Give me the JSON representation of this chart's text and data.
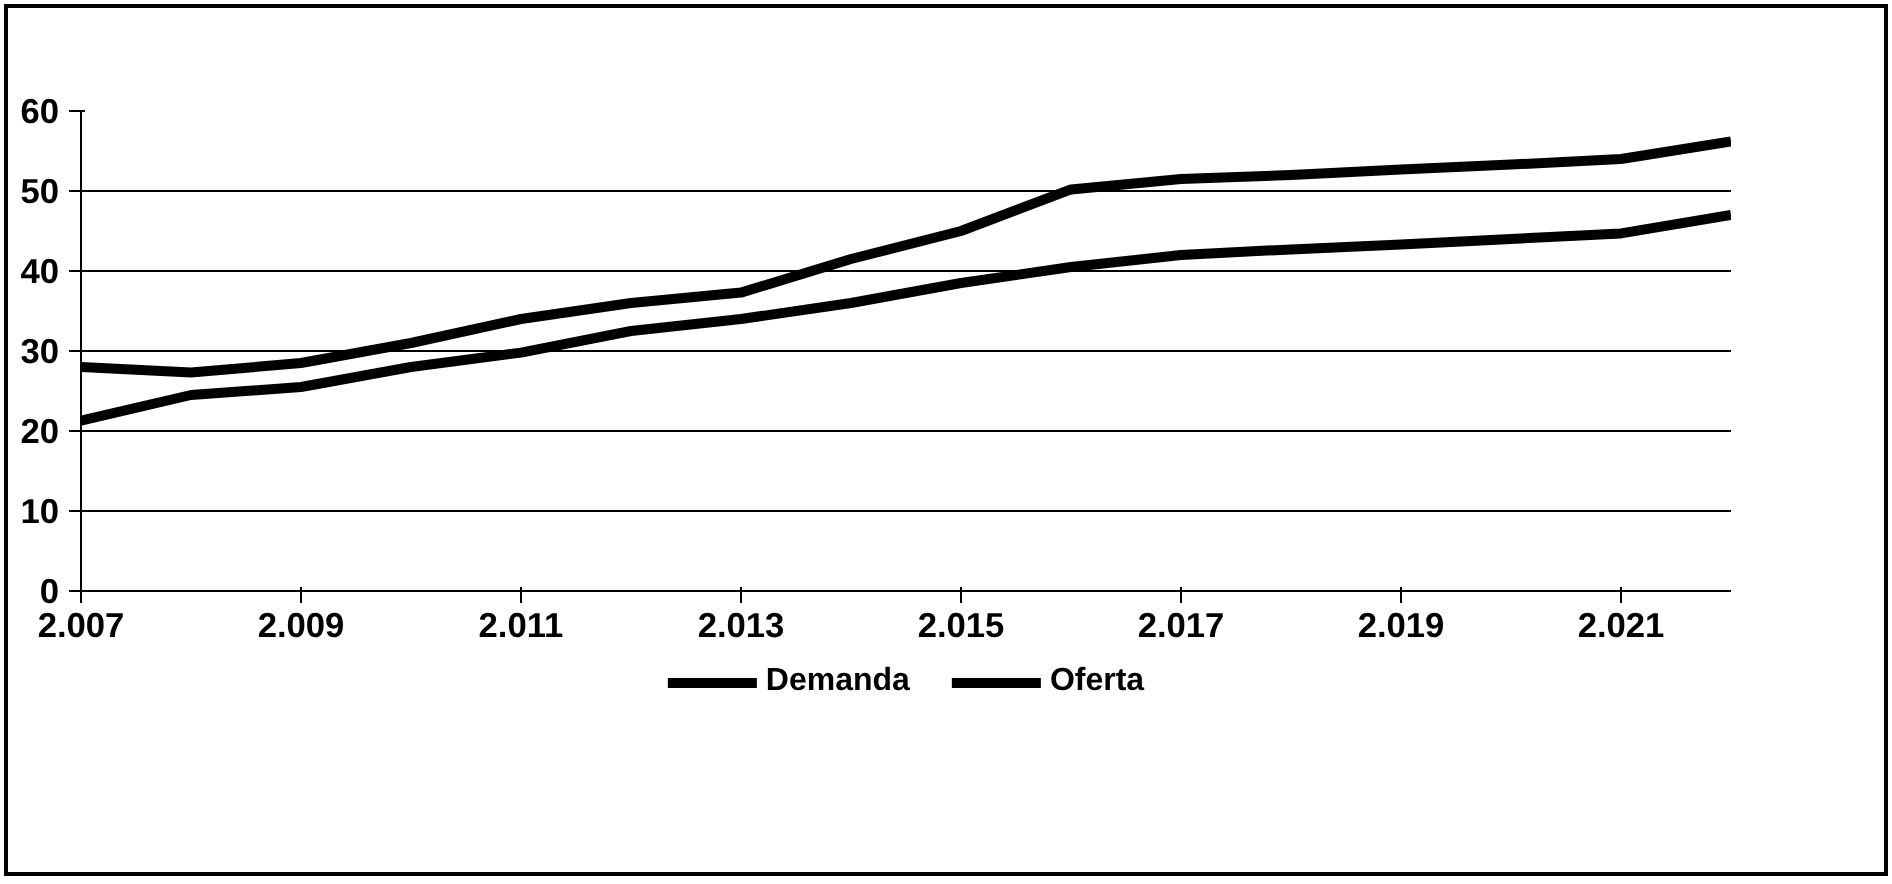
{
  "chart_data": {
    "type": "line",
    "x": [
      2007,
      2008,
      2009,
      2010,
      2011,
      2012,
      2013,
      2014,
      2015,
      2016,
      2017,
      2018,
      2019,
      2020,
      2021,
      2022
    ],
    "series": [
      {
        "name": "Demanda",
        "color": "#000000",
        "values": [
          28,
          27.3,
          28.5,
          31,
          34,
          36,
          37.3,
          41.5,
          45,
          50.2,
          51.5,
          52,
          52.7,
          53.3,
          54,
          56.2
        ]
      },
      {
        "name": "Oferta",
        "color": "#000000",
        "values": [
          21.3,
          24.5,
          25.5,
          28,
          29.8,
          32.5,
          34,
          36,
          38.5,
          40.5,
          42,
          42.7,
          43.3,
          44,
          44.7,
          47
        ]
      }
    ],
    "xlim": [
      2007,
      2022
    ],
    "xticks": [
      {
        "value": 2007,
        "label": "2.007"
      },
      {
        "value": 2009,
        "label": "2.009"
      },
      {
        "value": 2011,
        "label": "2.011"
      },
      {
        "value": 2013,
        "label": "2.013"
      },
      {
        "value": 2015,
        "label": "2.015"
      },
      {
        "value": 2017,
        "label": "2.017"
      },
      {
        "value": 2019,
        "label": "2.019"
      },
      {
        "value": 2021,
        "label": "2.021"
      }
    ],
    "ylim": [
      0,
      60
    ],
    "yticks": [
      0,
      10,
      20,
      30,
      40,
      50,
      60
    ],
    "grid": "y",
    "legend": "bottom",
    "marker": "none",
    "line_style": "solid"
  }
}
